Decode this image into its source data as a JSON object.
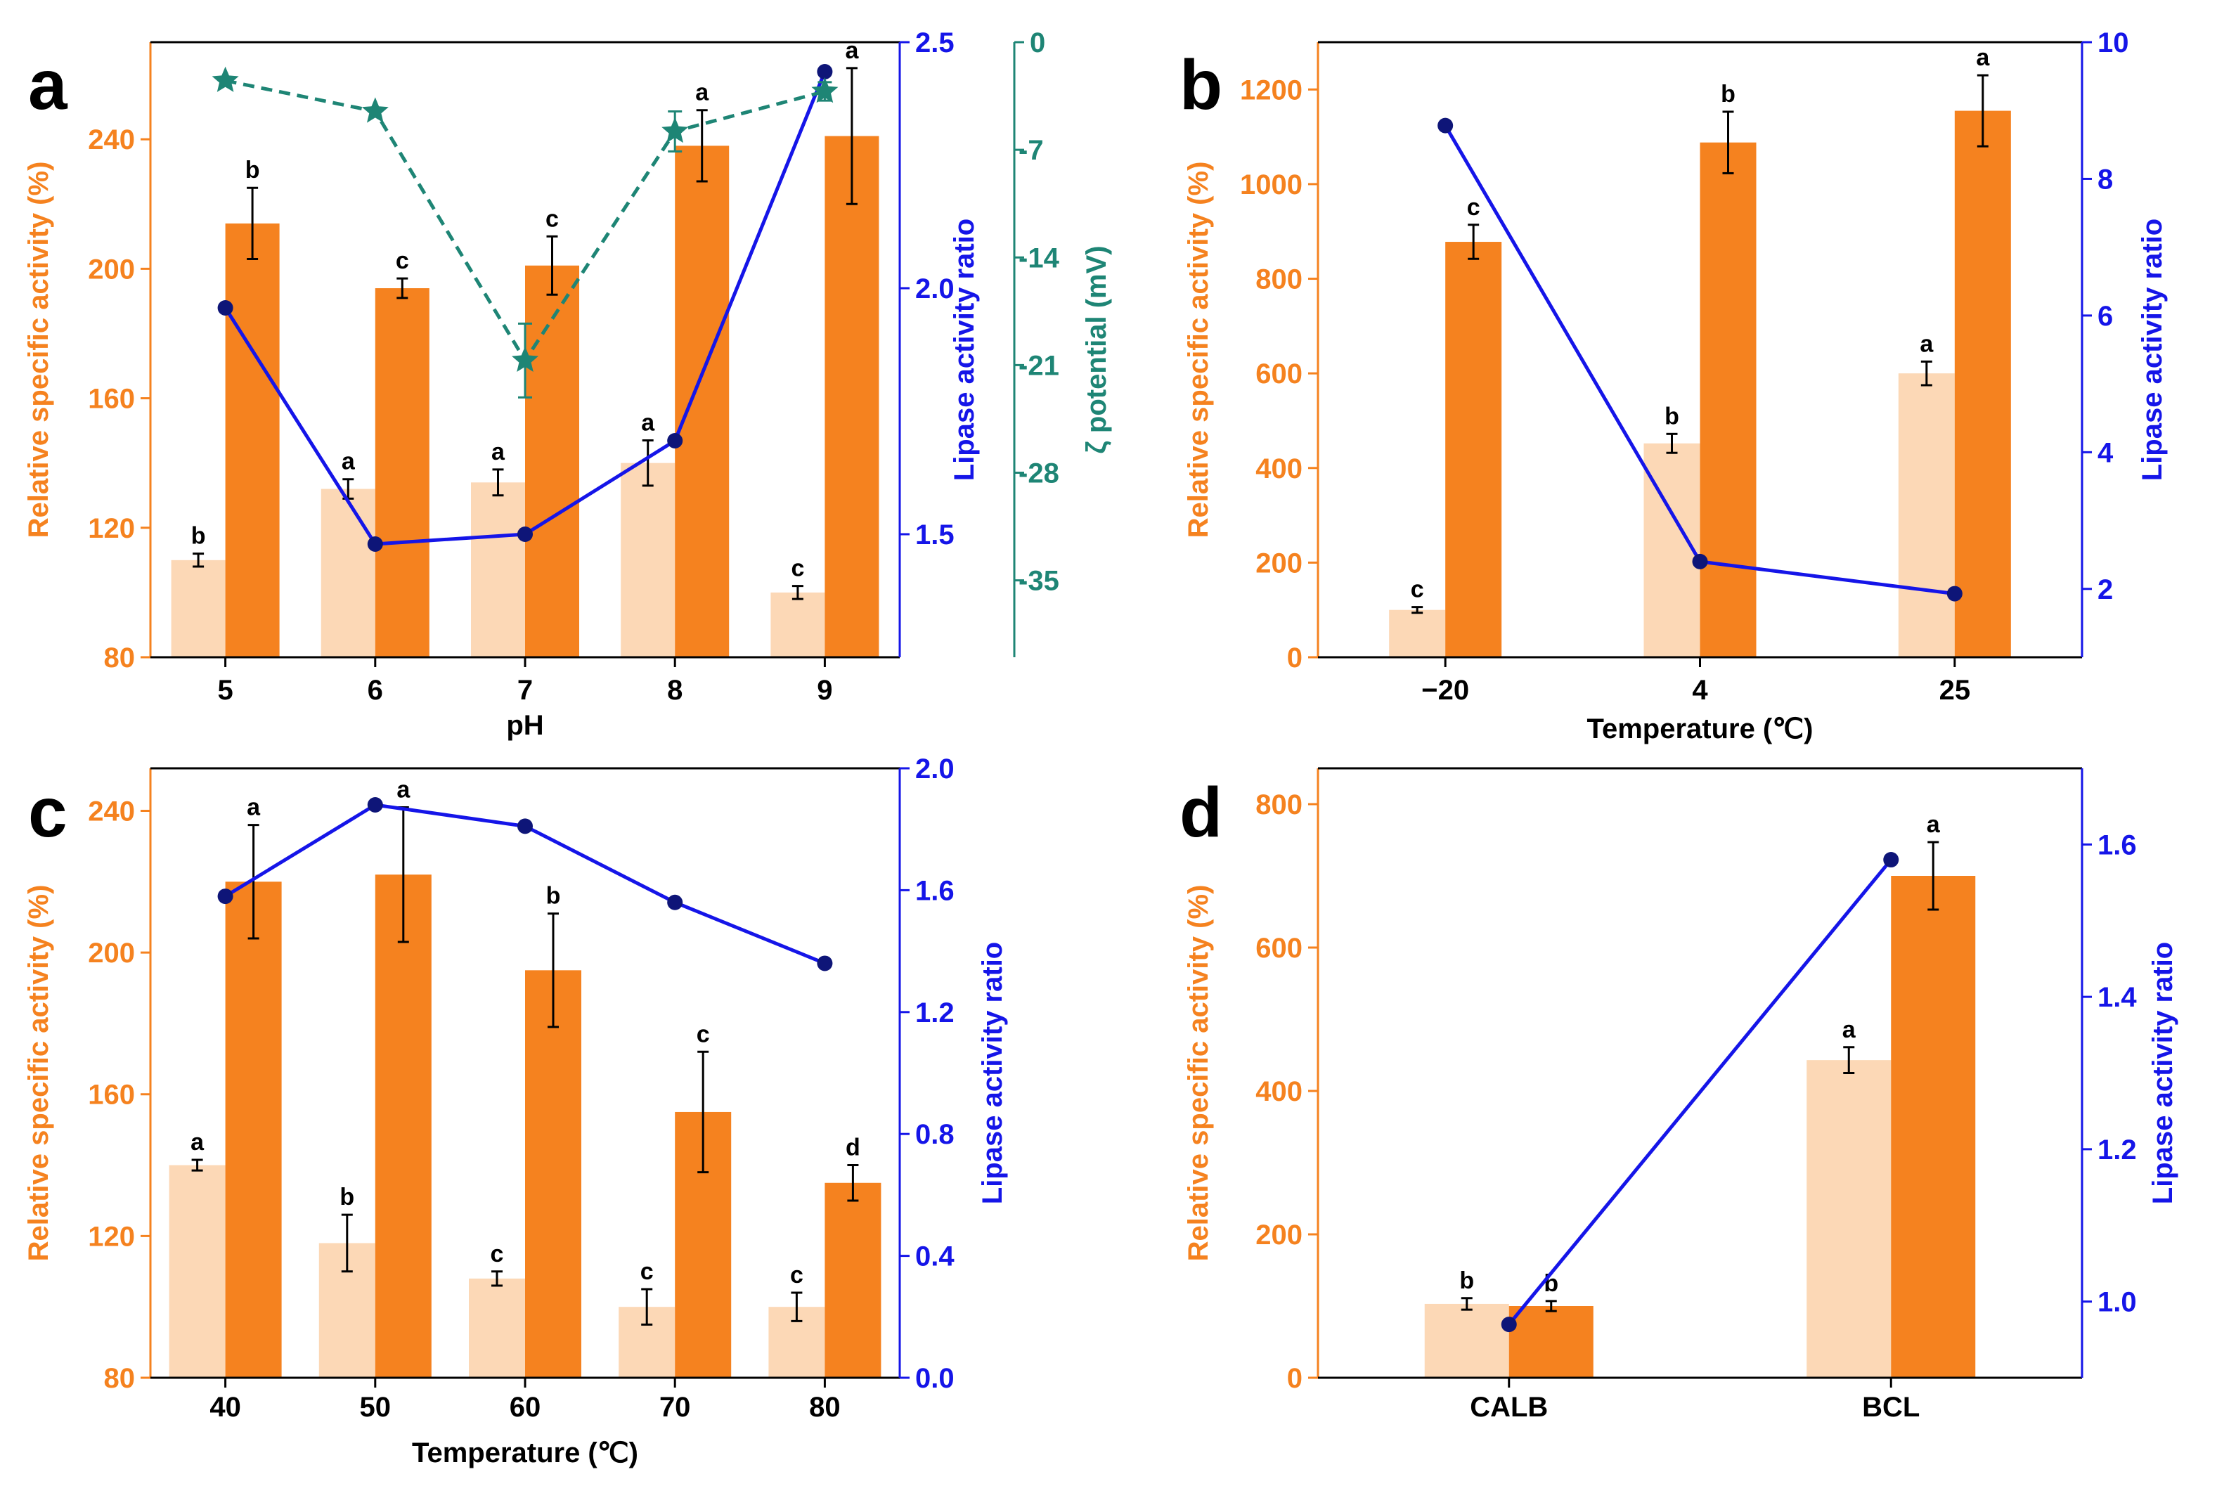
{
  "colors": {
    "light_bar": "#FCD8B6",
    "dark_bar": "#F5821F",
    "orange_axis": "#F5821F",
    "blue": "#1515E8",
    "blue_dot": "#0E1578",
    "teal": "#1E8575",
    "black": "#000000"
  },
  "chart_data": [
    {
      "panel": "a",
      "type": "bar",
      "categories": [
        "5",
        "6",
        "7",
        "8",
        "9"
      ],
      "xlabel": "pH",
      "ylabel": "Relative specific activity (%)",
      "ylim": [
        80,
        270
      ],
      "yticks": [
        "80",
        "120",
        "160",
        "200",
        "240"
      ],
      "series": [
        {
          "name": "light",
          "values": [
            110,
            132,
            134,
            140,
            100
          ],
          "errors": [
            2,
            3,
            4,
            7,
            2
          ],
          "labels": [
            "b",
            "a",
            "a",
            "a",
            "c"
          ]
        },
        {
          "name": "dark",
          "values": [
            214,
            194,
            201,
            238,
            241
          ],
          "errors": [
            11,
            3,
            9,
            11,
            21
          ],
          "labels": [
            "b",
            "c",
            "c",
            "a",
            "a"
          ]
        }
      ],
      "y2": {
        "label": "Lipase activity ratio",
        "lim": [
          1.25,
          2.5
        ],
        "ticks": [
          "1.5",
          "2.0",
          "2.5"
        ],
        "values": [
          1.96,
          1.48,
          1.5,
          1.69,
          2.44
        ]
      },
      "y3": {
        "label": "ζ potential (mV)",
        "lim": [
          -40,
          0
        ],
        "ticks": [
          "0",
          "-7",
          "-14",
          "-21",
          "-28",
          "-35"
        ],
        "values": [
          -2.5,
          -4.5,
          -20.7,
          -5.8,
          -3.2
        ],
        "errors": [
          0,
          0,
          2.4,
          1.3,
          0.6
        ]
      }
    },
    {
      "panel": "b",
      "type": "bar",
      "categories": [
        "−20",
        "4",
        "25"
      ],
      "xlabel": "Temperature (℃)",
      "ylabel": "Relative specific activity (%)",
      "ylim": [
        0,
        1300
      ],
      "yticks": [
        "0",
        "200",
        "400",
        "600",
        "800",
        "1000",
        "1200"
      ],
      "series": [
        {
          "name": "light",
          "values": [
            100,
            452,
            600
          ],
          "errors": [
            6,
            20,
            25
          ],
          "labels": [
            "c",
            "b",
            "a"
          ]
        },
        {
          "name": "dark",
          "values": [
            878,
            1088,
            1155
          ],
          "errors": [
            36,
            65,
            75
          ],
          "labels": [
            "c",
            "b",
            "a"
          ]
        }
      ],
      "y2": {
        "label": "Lipase activity ratio",
        "lim": [
          1,
          10
        ],
        "ticks": [
          "2",
          "4",
          "6",
          "8",
          "10"
        ],
        "values": [
          8.78,
          2.4,
          1.93
        ]
      }
    },
    {
      "panel": "c",
      "type": "bar",
      "categories": [
        "40",
        "50",
        "60",
        "70",
        "80"
      ],
      "xlabel": "Temperature (℃)",
      "ylabel": "Relative specific activity (%)",
      "ylim": [
        80,
        252
      ],
      "yticks": [
        "80",
        "120",
        "160",
        "200",
        "240"
      ],
      "series": [
        {
          "name": "light",
          "values": [
            140,
            118,
            108,
            100,
            100
          ],
          "errors": [
            1.5,
            8,
            2,
            5,
            4
          ],
          "labels": [
            "a",
            "b",
            "c",
            "c",
            "c"
          ]
        },
        {
          "name": "dark",
          "values": [
            220,
            222,
            195,
            155,
            135
          ],
          "errors": [
            16,
            19,
            16,
            17,
            5
          ],
          "labels": [
            "a",
            "a",
            "b",
            "c",
            "d"
          ]
        }
      ],
      "y2": {
        "label": "Lipase activity ratio",
        "lim": [
          0,
          2.0
        ],
        "ticks": [
          "0.0",
          "0.4",
          "0.8",
          "1.2",
          "1.6",
          "2.0"
        ],
        "values": [
          1.58,
          1.88,
          1.81,
          1.56,
          1.36
        ]
      }
    },
    {
      "panel": "d",
      "type": "bar",
      "categories": [
        "CALB",
        "BCL"
      ],
      "xlabel": "",
      "ylabel": "Relative specific activity (%)",
      "ylim": [
        0,
        850
      ],
      "yticks": [
        "0",
        "200",
        "400",
        "600",
        "800"
      ],
      "series": [
        {
          "name": "light",
          "values": [
            103,
            443
          ],
          "errors": [
            8,
            18
          ],
          "labels": [
            "b",
            "a"
          ]
        },
        {
          "name": "dark",
          "values": [
            100,
            700
          ],
          "errors": [
            7,
            47
          ],
          "labels": [
            "b",
            "a"
          ]
        }
      ],
      "y2": {
        "label": "Lipase activity ratio",
        "lim": [
          0.9,
          1.7
        ],
        "ticks": [
          "1.0",
          "1.2",
          "1.4",
          "1.6"
        ],
        "values": [
          0.97,
          1.58
        ]
      }
    }
  ]
}
